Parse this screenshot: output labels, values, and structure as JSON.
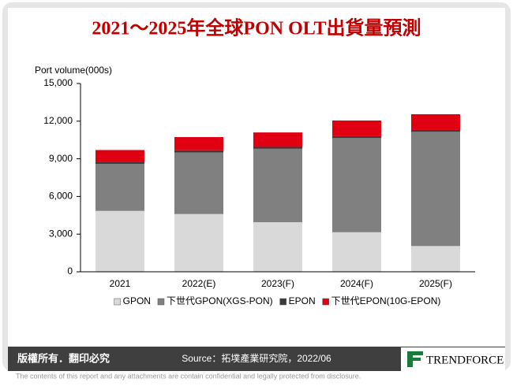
{
  "chart_data": {
    "type": "stacked-bar",
    "title": "2021～2025年全球PON OLT出貨量預測",
    "y_label": "Port volume(000s)",
    "categories": [
      "2021",
      "2022(E)",
      "2023(F)",
      "2024(F)",
      "2025(F)"
    ],
    "series": [
      {
        "name": "GPON",
        "color": "#d9d9d9",
        "values": [
          4850,
          4600,
          3950,
          3150,
          2050
        ]
      },
      {
        "name": "下世代GPON(XGS-PON)",
        "color": "#808080",
        "values": [
          3750,
          4900,
          5850,
          7500,
          9100
        ]
      },
      {
        "name": "EPON",
        "color": "#3a3a3a",
        "values": [
          150,
          180,
          150,
          150,
          150
        ]
      },
      {
        "name": "下世代EPON(10G-EPON)",
        "color": "#e00012",
        "values": [
          950,
          1050,
          1150,
          1250,
          1250
        ]
      }
    ],
    "ylim": [
      0,
      15000
    ],
    "yticks": [
      0,
      {
        "value": 3000,
        "label": "3,000"
      },
      {
        "value": 6000,
        "label": "6,000"
      },
      {
        "value": 9000,
        "label": "9,000"
      },
      {
        "value": 12000,
        "label": "12,000"
      },
      {
        "value": 15000,
        "label": "15,000"
      }
    ]
  },
  "footer": {
    "rights": "版權所有．翻印必究",
    "source": "Source：拓墣產業研究院，2022/06",
    "brand": "TRENDFORCE",
    "disclaimer": "The contents of this report and any attachments are contain confidential and legally protected from disclosure."
  }
}
